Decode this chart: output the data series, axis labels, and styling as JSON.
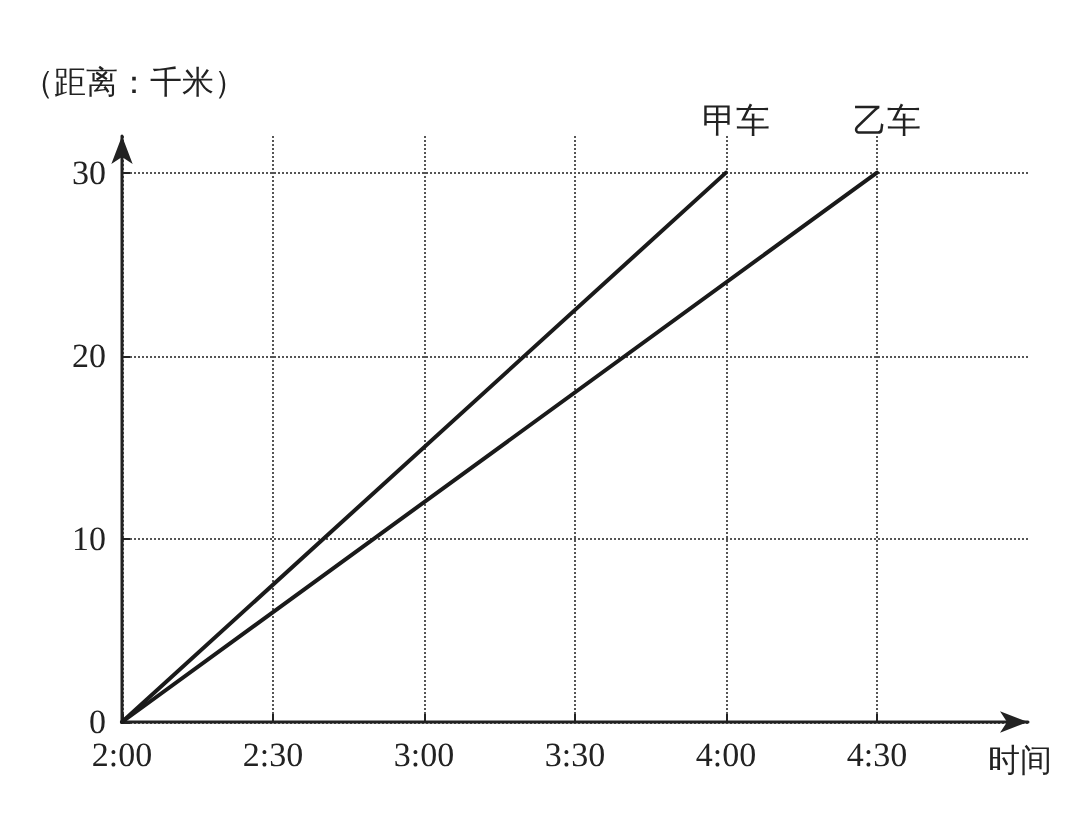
{
  "chart_data": {
    "type": "line",
    "ylabel": "（距离：千米）",
    "xlabel": "时间",
    "series": [
      {
        "name": "甲车",
        "color": "#1a1a1a",
        "x": [
          2,
          4
        ],
        "values": [
          0,
          30
        ]
      },
      {
        "name": "乙车",
        "color": "#1a1a1a",
        "x": [
          2,
          4.5
        ],
        "values": [
          0,
          30
        ]
      }
    ],
    "xlim": [
      2,
      5
    ],
    "ylim": [
      0,
      32
    ],
    "xticks": [
      {
        "value": 2,
        "label": "2:00"
      },
      {
        "value": 2.5,
        "label": "2:30"
      },
      {
        "value": 3,
        "label": "3:00"
      },
      {
        "value": 3.5,
        "label": "3:30"
      },
      {
        "value": 4,
        "label": "4:00"
      },
      {
        "value": 4.5,
        "label": "4:30"
      }
    ],
    "yticks": [
      0,
      10,
      20,
      30
    ],
    "grid": true,
    "legend": false,
    "marker": "none",
    "line_style": "solid"
  }
}
